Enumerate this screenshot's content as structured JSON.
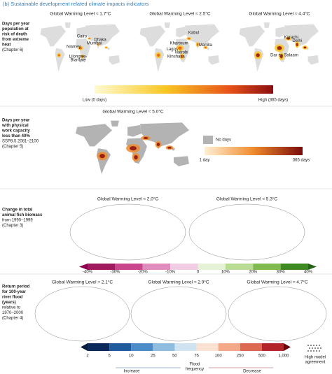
{
  "header": {
    "title": "(b) Sustainable development related climate impacts indicators"
  },
  "panels": [
    {
      "label_bold": [
        "Days per year",
        "population at",
        "risk of death",
        "from extreme",
        "heat"
      ],
      "label_note": [
        "(Chapter 6)"
      ],
      "maps": [
        {
          "title": "Global Warming Level ≈ 1.7°C",
          "cities": [
            "Cairo",
            "Mumbai",
            "Dhaka",
            "Niamey",
            "Lilongwe-",
            "Blantyre"
          ]
        },
        {
          "title": "Global Warming Level ≈ 2.5°C",
          "cities": [
            "Kabul",
            "Khartoum",
            "Manilla",
            "Lagos",
            "Nairobi",
            "Kinshasa"
          ]
        },
        {
          "title": "Global Warming Level ≈ 4.4°C",
          "cities": [
            "Karachi",
            "Delhi",
            "Dar es Salaam"
          ]
        }
      ],
      "legend": {
        "low": "Low (0 days)",
        "high": "High (365 days)"
      }
    },
    {
      "label_bold": [
        "Days per year",
        "with physical",
        "work capacity",
        "less than 40%"
      ],
      "label_note": [
        "SSP8.5 2081–2100",
        "(Chapter 5)"
      ],
      "maps": [
        {
          "title": "Global Warming Level ≈ 5.0°C",
          "cities": []
        }
      ],
      "legend": {
        "none": "No days",
        "min": "1 day",
        "max": "365 days"
      }
    },
    {
      "label_bold": [
        "Change in total",
        "animal fish biomass"
      ],
      "label_note": [
        "from 1990–1999",
        "(Chapter 3)"
      ],
      "maps": [
        {
          "title": "Global Warming Level ≈ 2.0°C",
          "cities": []
        },
        {
          "title": "Global Warming Level ≈ 5.3°C",
          "cities": []
        }
      ],
      "legend": {
        "ticks": [
          "-40%",
          "-30%",
          "-20%",
          "-10%",
          "0",
          "10%",
          "20%",
          "30%",
          "40%"
        ]
      }
    },
    {
      "label_bold": [
        "Return period",
        "for 100-year",
        "river flood",
        "(years)"
      ],
      "label_note": [
        "relative to",
        "1970–2000",
        "(Chapter 4)"
      ],
      "maps": [
        {
          "title": "Global Warming Level ≈ 2.1°C",
          "cities": []
        },
        {
          "title": "Global Warming Level ≈ 2.9°C",
          "cities": []
        },
        {
          "title": "Global Warming Level ≈ 4.7°C",
          "cities": []
        }
      ],
      "legend": {
        "ticks": [
          "2",
          "5",
          "10",
          "25",
          "50",
          "75",
          "100",
          "250",
          "500",
          "1,000"
        ],
        "increase": "Increase",
        "flood": [
          "Flood",
          "frequency"
        ],
        "decrease": "Decrease",
        "agreement": [
          "High model",
          "agreement"
        ]
      }
    }
  ]
}
